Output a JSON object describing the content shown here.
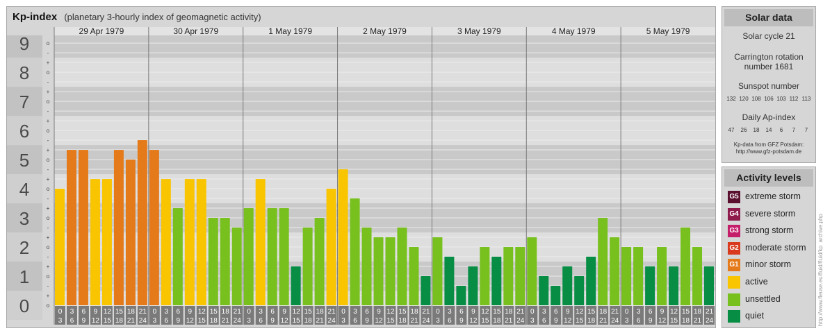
{
  "header": {
    "title": "Kp-index",
    "subtitle": "(planetary 3-hourly index of geomagnetic activity)"
  },
  "chart_data": {
    "type": "bar",
    "ylim": [
      0,
      9
    ],
    "y_major_ticks": [
      "0",
      "1",
      "2",
      "3",
      "4",
      "5",
      "6",
      "7",
      "8",
      "9"
    ],
    "y_minor_ticks": [
      "o",
      "+",
      "-"
    ],
    "dates": [
      "29 Apr 1979",
      "30 Apr 1979",
      "1 May 1979",
      "2 May 1979",
      "3 May 1979",
      "4 May 1979",
      "5 May 1979"
    ],
    "interval_start_labels": [
      "0",
      "3",
      "6",
      "9",
      "12",
      "15",
      "18",
      "21"
    ],
    "interval_end_labels": [
      "3",
      "6",
      "9",
      "12",
      "15",
      "18",
      "21",
      "24"
    ],
    "values": [
      [
        4.0,
        5.333,
        5.333,
        4.333,
        4.333,
        5.333,
        5.0,
        5.667
      ],
      [
        5.333,
        4.333,
        3.333,
        4.333,
        4.333,
        3.0,
        3.0,
        2.667
      ],
      [
        3.333,
        4.333,
        3.333,
        3.333,
        1.333,
        2.667,
        3.0,
        4.0
      ],
      [
        4.667,
        3.667,
        2.667,
        2.333,
        2.333,
        2.667,
        2.0,
        1.0
      ],
      [
        2.333,
        1.667,
        0.667,
        1.333,
        2.0,
        1.667,
        2.0,
        2.0
      ],
      [
        2.333,
        1.0,
        0.667,
        1.333,
        1.0,
        1.667,
        3.0,
        2.333
      ],
      [
        2.0,
        2.0,
        1.333,
        2.0,
        1.333,
        2.667,
        2.0,
        1.333
      ]
    ],
    "grid": true,
    "colors": {
      "quiet": "#078d44",
      "unsettled": "#78c01e",
      "active": "#f9c400",
      "minor": "#e47a1a",
      "moderate": "#d93a1d"
    }
  },
  "solar_data": {
    "heading": "Solar data",
    "solar_cycle": "Solar cycle 21",
    "carrington_line1": "Carrington rotation",
    "carrington_line2": "number 1681",
    "sunspot_heading": "Sunspot number",
    "sunspot_values": [
      "132",
      "120",
      "108",
      "106",
      "103",
      "112",
      "113"
    ],
    "ap_heading": "Daily Ap-index",
    "ap_values": [
      "47",
      "26",
      "18",
      "14",
      "6",
      "7",
      "7"
    ],
    "source_line1": "Kp-data from GFZ Potsdam:",
    "source_line2": "http://www.gfz-potsdam.de"
  },
  "activity_levels": {
    "heading": "Activity levels",
    "items": [
      {
        "badge": "G5",
        "label": "extreme storm",
        "color": "#5a0f2e"
      },
      {
        "badge": "G4",
        "label": "severe storm",
        "color": "#8e1a4c"
      },
      {
        "badge": "G3",
        "label": "strong storm",
        "color": "#c41e6b"
      },
      {
        "badge": "G2",
        "label": "moderate storm",
        "color": "#d93a1d"
      },
      {
        "badge": "G1",
        "label": "minor storm",
        "color": "#e47a1a"
      },
      {
        "badge": "",
        "label": "active",
        "color": "#f9c400"
      },
      {
        "badge": "",
        "label": "unsettled",
        "color": "#78c01e"
      },
      {
        "badge": "",
        "label": "quiet",
        "color": "#078d44"
      }
    ]
  },
  "watermark": "http://www.fleuse.eu/fluid/fluid/kp_archive.php"
}
